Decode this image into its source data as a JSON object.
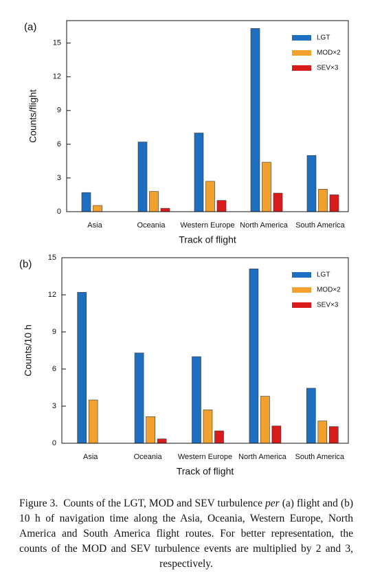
{
  "chart_data": [
    {
      "type": "bar",
      "panel_label": "(a)",
      "ylabel": "Counts/flight",
      "xlabel": "Track of flight",
      "categories": [
        "Asia",
        "Oceania",
        "Western Europe",
        "North America",
        "South America"
      ],
      "series": [
        {
          "name": "LGT",
          "color": "#1f6fc0",
          "values": [
            1.7,
            6.2,
            7.0,
            16.3,
            5.0
          ]
        },
        {
          "name": "MOD×2",
          "color": "#f2a12e",
          "values": [
            0.55,
            1.8,
            2.7,
            4.4,
            2.0
          ]
        },
        {
          "name": "SEV×3",
          "color": "#d81b1b",
          "values": [
            0,
            0.3,
            1.0,
            1.65,
            1.5
          ]
        }
      ],
      "ylim": [
        0,
        17
      ],
      "yticks": [
        0,
        3,
        6,
        9,
        12,
        15
      ],
      "legend": "upper right"
    },
    {
      "type": "bar",
      "panel_label": "(b)",
      "ylabel": "Counts/10 h",
      "xlabel": "Track of flight",
      "categories": [
        "Asia",
        "Oceania",
        "Western Europe",
        "North America",
        "South America"
      ],
      "series": [
        {
          "name": "LGT",
          "color": "#1f6fc0",
          "values": [
            12.2,
            7.3,
            7.0,
            14.1,
            4.45
          ]
        },
        {
          "name": "MOD×2",
          "color": "#f2a12e",
          "values": [
            3.5,
            2.15,
            2.7,
            3.8,
            1.8
          ]
        },
        {
          "name": "SEV×3",
          "color": "#d81b1b",
          "values": [
            0,
            0.35,
            1.0,
            1.4,
            1.35
          ]
        }
      ],
      "ylim": [
        0,
        15
      ],
      "yticks": [
        0,
        3,
        6,
        9,
        12,
        15
      ],
      "legend": "upper right"
    }
  ],
  "caption": {
    "label": "Figure 3.",
    "text_before": "Counts of the LGT, MOD and SEV turbulence",
    "emphasis": "per",
    "text_after": "(a) flight and (b) 10 h of navigation time along the Asia, Oceania, Western Europe, North America and South America flight routes. For better representation, the counts of the MOD and SEV turbulence events are multiplied by 2 and 3, respectively."
  }
}
